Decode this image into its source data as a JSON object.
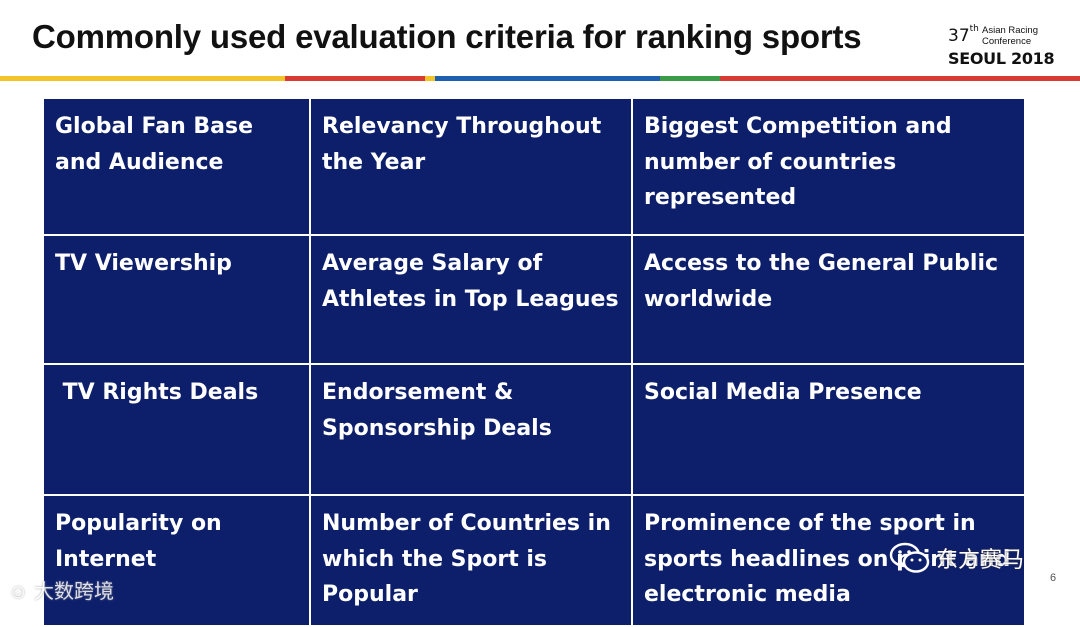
{
  "title": "Commonly used evaluation criteria for ranking sports",
  "logo": {
    "number": "37",
    "number_suffix": "th",
    "name_line1": "Asian Racing",
    "name_line2": "Conference",
    "city": "SEOUL 2018"
  },
  "stripe_colors": [
    "#f2c42a",
    "#d93a34",
    "#f2c42a",
    "#1f5fb0",
    "#3a9c48",
    "#d93a34"
  ],
  "table": [
    [
      {
        "line1": "Global Fan Base",
        "line2": "and Audience",
        "line3": ""
      },
      {
        "line1": "Relevancy Throughout",
        "line2": "the Year",
        "line3": ""
      },
      {
        "line1": "Biggest Competition and",
        "line2": "number of countries",
        "line3": "represented"
      }
    ],
    [
      {
        "line1": "TV Viewership",
        "line2": "",
        "line3": ""
      },
      {
        "line1": "Average Salary of",
        "line2": "Athletes in Top Leagues",
        "line3": ""
      },
      {
        "line1": "Access to the General Public",
        "line2": "worldwide",
        "line3": ""
      }
    ],
    [
      {
        "line1": " TV Rights Deals",
        "line2": "",
        "line3": ""
      },
      {
        "line1": "Endorsement &",
        "line2": "Sponsorship Deals",
        "line3": ""
      },
      {
        "line1": "Social Media Presence",
        "line2": "",
        "line3": ""
      }
    ],
    [
      {
        "line1": "Popularity on",
        "line2": "Internet",
        "line3": ""
      },
      {
        "line1": "Number of Countries in",
        "line2": "which the Sport is",
        "line3": "Popular"
      },
      {
        "line1": "Prominence of the sport in",
        "line2": "sports headlines on print and",
        "line3": "electronic media"
      }
    ]
  ],
  "watermark_left": "大数跨境",
  "watermark_right": "东方赛马",
  "page_number": "6"
}
